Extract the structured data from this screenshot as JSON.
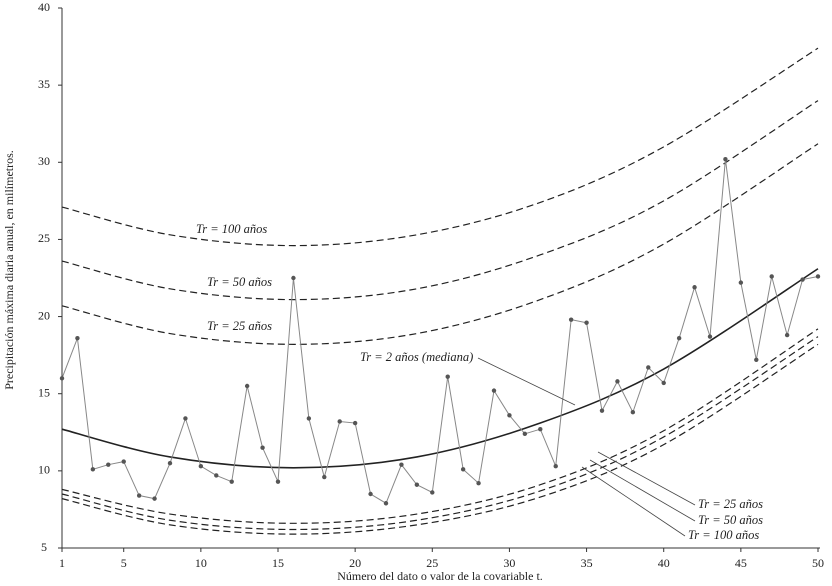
{
  "chart_data": {
    "type": "line",
    "x_label": "Número del dato o valor de la covariable t.",
    "y_label": "Precipitación máxima diaria anual, en milímetros.",
    "x": [
      1,
      2,
      3,
      4,
      5,
      6,
      7,
      8,
      9,
      10,
      11,
      12,
      13,
      14,
      15,
      16,
      17,
      18,
      19,
      20,
      21,
      22,
      23,
      24,
      25,
      26,
      27,
      28,
      29,
      30,
      31,
      32,
      33,
      34,
      35,
      36,
      37,
      38,
      39,
      40,
      41,
      42,
      43,
      44,
      45,
      46,
      47,
      48,
      49,
      50
    ],
    "values": [
      16.0,
      18.6,
      10.1,
      10.4,
      10.6,
      8.4,
      8.2,
      10.5,
      13.4,
      10.3,
      9.7,
      9.3,
      15.5,
      11.5,
      9.3,
      22.5,
      13.4,
      9.6,
      13.2,
      13.1,
      8.5,
      7.9,
      10.4,
      9.1,
      8.6,
      16.1,
      10.1,
      9.2,
      15.2,
      13.6,
      12.4,
      12.7,
      10.3,
      19.8,
      19.6,
      13.9,
      15.8,
      13.8,
      16.7,
      15.7,
      18.6,
      21.9,
      18.7,
      30.2,
      22.2,
      17.2,
      22.6,
      18.8,
      22.4,
      22.6
    ],
    "color": "#555555",
    "curve_x": [
      1,
      8,
      16,
      24,
      32,
      40,
      50
    ],
    "curves": [
      {
        "style": "solid",
        "values": [
          12.7,
          10.9,
          10.2,
          10.9,
          13.1,
          16.6,
          23.1
        ]
      },
      {
        "style": "dashed",
        "values": [
          20.7,
          18.9,
          18.2,
          18.9,
          21.1,
          24.7,
          31.2
        ]
      },
      {
        "style": "dashed",
        "values": [
          23.6,
          21.8,
          21.1,
          21.8,
          24.0,
          27.5,
          34.0
        ]
      },
      {
        "style": "dashed",
        "values": [
          27.1,
          25.3,
          24.6,
          25.3,
          27.4,
          31.0,
          37.4
        ]
      },
      {
        "style": "dashed",
        "values": [
          8.8,
          7.2,
          6.6,
          7.2,
          9.1,
          12.6,
          19.2
        ]
      },
      {
        "style": "dashed",
        "values": [
          8.5,
          6.8,
          6.2,
          6.8,
          8.7,
          12.2,
          18.7
        ]
      },
      {
        "style": "dashed",
        "values": [
          8.2,
          6.5,
          5.9,
          6.5,
          8.3,
          11.7,
          18.2
        ]
      }
    ],
    "annotations": [
      "Tr = 100 años",
      "Tr = 50 años",
      "Tr = 25 años",
      "Tr = 2 años (mediana)",
      "Tr = 25 años",
      "Tr = 50 años",
      "Tr = 100 años"
    ],
    "xlim": [
      1,
      50
    ],
    "xticks": [
      1,
      5,
      10,
      15,
      20,
      25,
      30,
      35,
      40,
      45,
      50
    ],
    "ylim": [
      5,
      40
    ],
    "yticks": [
      5,
      10,
      15,
      20,
      25,
      30,
      35,
      40
    ]
  }
}
